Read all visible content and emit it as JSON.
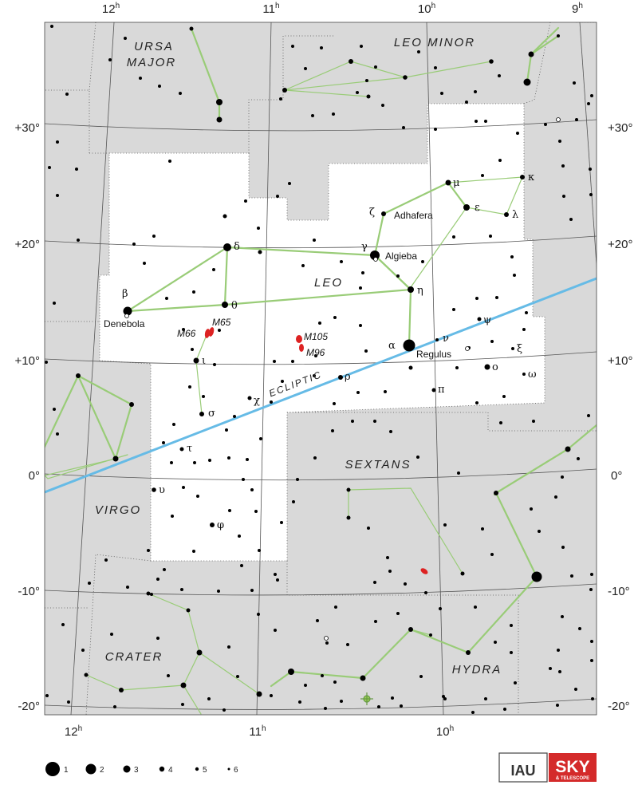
{
  "ra_labels_top": [
    "12",
    "11",
    "10",
    "9"
  ],
  "ra_labels_bottom": [
    "12",
    "11",
    "10"
  ],
  "ra_unit": "h",
  "dec_labels": [
    "+30°",
    "+20°",
    "+10°",
    "0°",
    "-10°",
    "-20°"
  ],
  "constellations": {
    "ursa_major": [
      "URSA",
      "MAJOR"
    ],
    "leo_minor": "LEO MINOR",
    "leo": "LEO",
    "sextans": "SEXTANS",
    "virgo": "VIRGO",
    "crater": "CRATER",
    "hydra": "HYDRA"
  },
  "ecliptic_label": "ECLIPTIC",
  "star_names": {
    "denebola": "Denebola",
    "algieba": "Algieba",
    "adhafera": "Adhafera",
    "regulus": "Regulus"
  },
  "greek": {
    "alpha": "α",
    "beta": "β",
    "gamma": "γ",
    "delta": "δ",
    "epsilon": "ε",
    "zeta": "ζ",
    "eta": "η",
    "theta": "θ",
    "iota": "ι",
    "kappa": "κ",
    "lambda": "λ",
    "mu": "μ",
    "nu": "ν",
    "xi": "ξ",
    "omicron": "ο",
    "pi": "π",
    "rho": "ρ",
    "sigma": "σ",
    "tau": "τ",
    "upsilon": "υ",
    "phi": "φ",
    "chi": "χ",
    "psi": "ψ",
    "omega": "ω"
  },
  "dso": {
    "m65": "M65",
    "m66": "M66",
    "m105": "M105",
    "m96": "M96"
  },
  "legend": {
    "title_items": [
      "1",
      "2",
      "3",
      "4",
      "5",
      "6"
    ]
  },
  "logos": {
    "iau": "IAU",
    "sky": "SKY",
    "telescope": "& TELESCOPE"
  },
  "colors": {
    "outside": "#d9d9d9",
    "leo_region": "#ffffff",
    "stick": "#99cc77",
    "ecliptic": "#66bbe6",
    "galaxy": "#dd2222",
    "grid": "#555555",
    "sky_red": "#d42a2a"
  }
}
